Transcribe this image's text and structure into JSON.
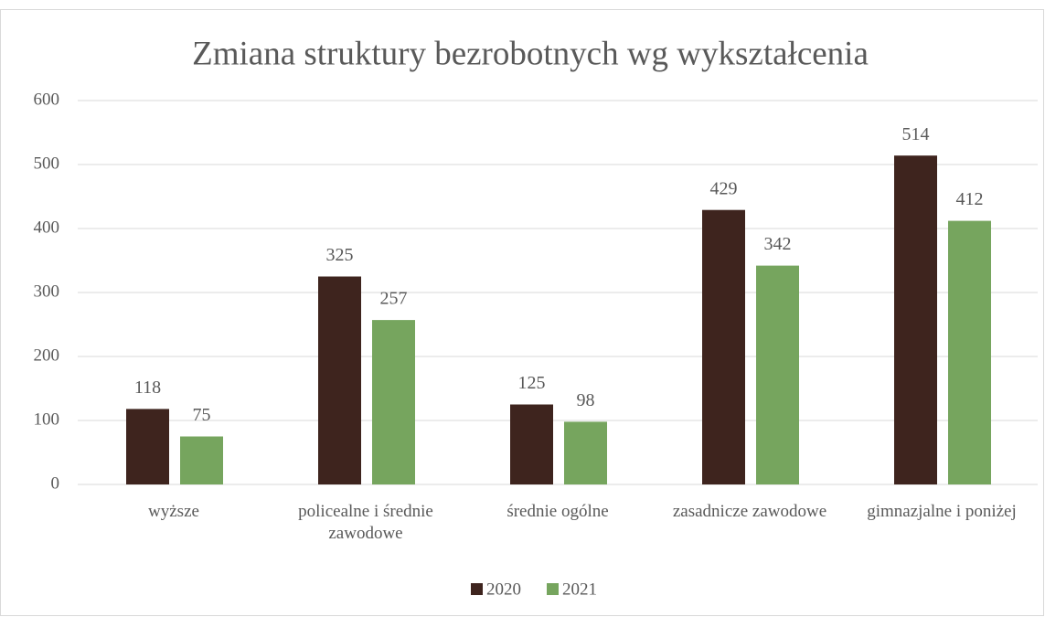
{
  "chart_data": {
    "type": "bar",
    "title": "Zmiana struktury bezrobotnych wg wykształcenia",
    "categories": [
      "wyższe",
      "policealne i średnie zawodowe",
      "średnie ogólne",
      "zasadnicze zawodowe",
      "gimnazjalne i poniżej"
    ],
    "series": [
      {
        "name": "2020",
        "color": "#3e241e",
        "values": [
          118,
          325,
          125,
          429,
          514
        ]
      },
      {
        "name": "2021",
        "color": "#76a55e",
        "values": [
          75,
          257,
          98,
          342,
          412
        ]
      }
    ],
    "ylim": [
      0,
      600
    ],
    "yticks": [
      0,
      100,
      200,
      300,
      400,
      500,
      600
    ],
    "grid": true,
    "legend": "bottom"
  }
}
